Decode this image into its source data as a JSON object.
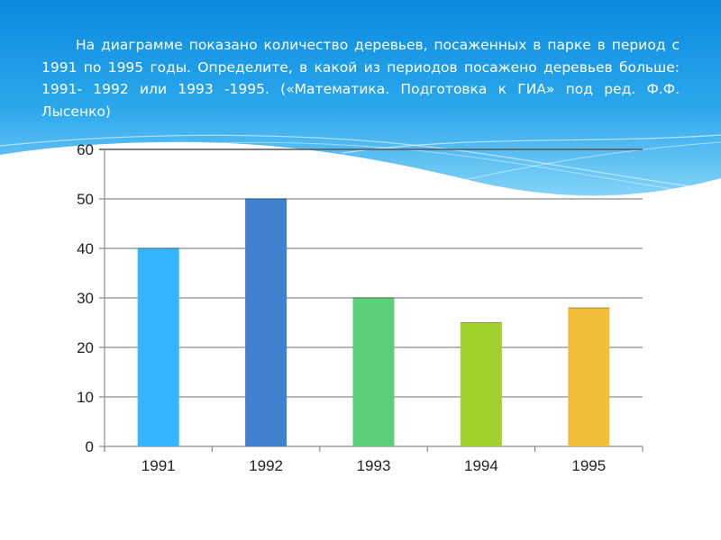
{
  "slide": {
    "problem_text": "На диаграмме показано количество деревьев, посаженных в парке в период с 1991 по 1995 годы. Определите, в какой из периодов посажено деревьев больше: 1991- 1992 или 1993 -1995.   («Математика. Подготовка к ГИА» под ред. Ф.Ф. Лысенко)"
  },
  "colors": {
    "header_top": "#0b8fe0",
    "header_bottom": "#7fd0f7",
    "grid": "#8c8c8c",
    "axis": "#8c8c8c",
    "top_grid": "#555555"
  },
  "chart_data": {
    "type": "bar",
    "categories": [
      "1991",
      "1992",
      "1993",
      "1994",
      "1995"
    ],
    "values": [
      40,
      50,
      30,
      25,
      28
    ],
    "colors": [
      "#33b5ff",
      "#4080d0",
      "#58cf78",
      "#a2d12b",
      "#f1be3a"
    ],
    "title": "",
    "xlabel": "",
    "ylabel": "",
    "ylim": [
      0,
      60
    ],
    "yticks": [
      0,
      10,
      20,
      30,
      40,
      50,
      60
    ],
    "grid": true,
    "legend": "none"
  }
}
